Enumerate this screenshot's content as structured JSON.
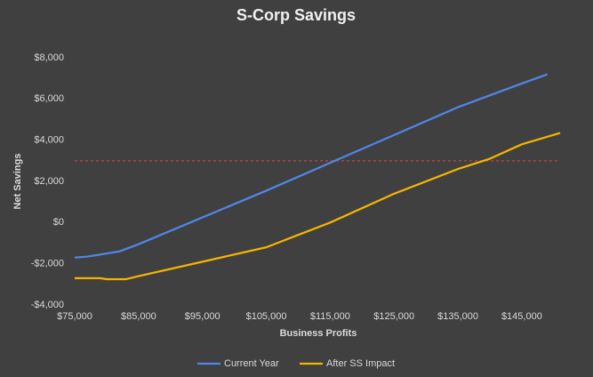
{
  "chart_data": {
    "type": "line",
    "title": "S-Corp Savings",
    "xlabel": "Business Profits",
    "ylabel": "Net Savings",
    "xlim": [
      75000,
      151000
    ],
    "xticks": [
      {
        "value": 75000,
        "label": "$75,000"
      },
      {
        "value": 85000,
        "label": "$85,000"
      },
      {
        "value": 95000,
        "label": "$95,000"
      },
      {
        "value": 105000,
        "label": "$105,000"
      },
      {
        "value": 115000,
        "label": "$115,000"
      },
      {
        "value": 125000,
        "label": "$125,000"
      },
      {
        "value": 135000,
        "label": "$135,000"
      },
      {
        "value": 145000,
        "label": "$145,000"
      }
    ],
    "ylim": [
      -4000,
      8000
    ],
    "yticks": [
      {
        "value": -4000,
        "label": "-$4,000"
      },
      {
        "value": -2000,
        "label": "-$2,000"
      },
      {
        "value": 0,
        "label": "$0"
      },
      {
        "value": 2000,
        "label": "$2,000"
      },
      {
        "value": 4000,
        "label": "$4,000"
      },
      {
        "value": 6000,
        "label": "$6,000"
      },
      {
        "value": 8000,
        "label": "$8,000"
      }
    ],
    "grid": false,
    "legend": "bottom",
    "reference_line": {
      "value": 3000,
      "color": "#e04848",
      "style": "dashed"
    },
    "series": [
      {
        "name": "Current Year",
        "color": "#4f86e8",
        "x": [
          75000,
          77000,
          79000,
          81000,
          82000,
          85000,
          95000,
          105000,
          115000,
          125000,
          135000,
          145000,
          149000
        ],
        "values": [
          -1700,
          -1650,
          -1550,
          -1450,
          -1400,
          -1050,
          250,
          1550,
          2900,
          4250,
          5600,
          6750,
          7200
        ]
      },
      {
        "name": "After SS Impact",
        "color": "#f5b400",
        "x": [
          75000,
          79000,
          80000,
          83000,
          85000,
          95000,
          105000,
          110000,
          115000,
          125000,
          135000,
          140000,
          145000,
          151000
        ],
        "values": [
          -2700,
          -2700,
          -2750,
          -2750,
          -2600,
          -1900,
          -1200,
          -600,
          0,
          1400,
          2600,
          3100,
          3800,
          4350
        ]
      }
    ]
  }
}
